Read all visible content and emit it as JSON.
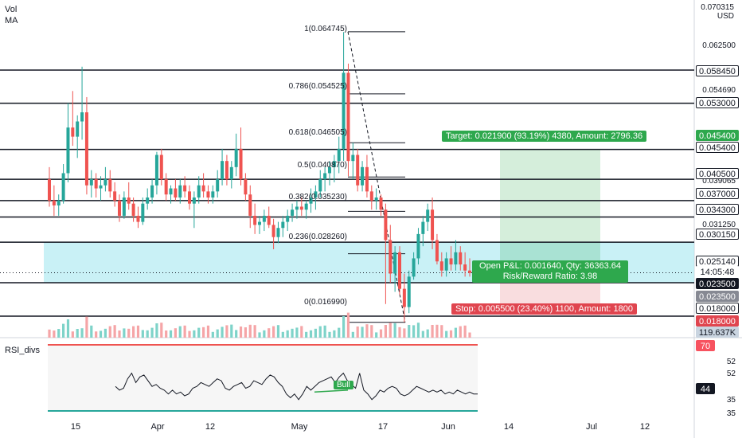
{
  "header": {
    "vol_label": "Vol",
    "ma_label": "MA"
  },
  "axis": {
    "currency_line1": "0.070315",
    "currency_line2": "USD",
    "plain_ticks": [
      "0.062500",
      "0.054690",
      "0.039065",
      "0.031250",
      "0.023500"
    ],
    "rsi_ticks": [
      "52",
      "52",
      "44",
      "35",
      "35"
    ]
  },
  "price_tags": [
    {
      "text": "0.058450",
      "bg": "#ffffff",
      "fg": "#131722",
      "border": "#131722"
    },
    {
      "text": "0.053000",
      "bg": "#ffffff",
      "fg": "#131722",
      "border": "#131722"
    },
    {
      "text": "0.045400",
      "bg": "#2ea84d",
      "fg": "#ffffff",
      "border": "#2ea84d"
    },
    {
      "text": "0.045400",
      "bg": "#ffffff",
      "fg": "#131722",
      "border": "#131722"
    },
    {
      "text": "0.040500",
      "bg": "#ffffff",
      "fg": "#131722",
      "border": "#131722"
    },
    {
      "text": "0.037000",
      "bg": "#ffffff",
      "fg": "#131722",
      "border": "#131722"
    },
    {
      "text": "0.034300",
      "bg": "#ffffff",
      "fg": "#131722",
      "border": "#131722"
    },
    {
      "text": "0.030150",
      "bg": "#ffffff",
      "fg": "#131722",
      "border": "#131722"
    },
    {
      "text": "0.025140",
      "bg": "#ffffff",
      "fg": "#131722",
      "border": "#131722"
    },
    {
      "text": "14:05:48",
      "bg": "#ffffff",
      "fg": "#131722",
      "border": "#ffffff"
    },
    {
      "text": "0.023500",
      "bg": "#131722",
      "fg": "#ffffff",
      "border": "#131722"
    },
    {
      "text": "0.023500",
      "bg": "#868993",
      "fg": "#ffffff",
      "border": "#868993"
    },
    {
      "text": "0.018000",
      "bg": "#ffffff",
      "fg": "#131722",
      "border": "#131722"
    },
    {
      "text": "0.018000",
      "bg": "#e0454f",
      "fg": "#ffffff",
      "border": "#e0454f"
    },
    {
      "text": "119.637K",
      "bg": "#c9d4e0",
      "fg": "#131722",
      "border": "#c9d4e0"
    },
    {
      "text": "70",
      "bg": "#f7525f",
      "fg": "#ffffff",
      "border": "#f7525f"
    },
    {
      "text": "44",
      "bg": "#131722",
      "fg": "#ffffff",
      "border": "#131722"
    }
  ],
  "fib_labels": [
    "1(0.064745)",
    "0.786(0.054525)",
    "0.618(0.046505)",
    "0.5(0.040870)",
    "0.382(0.035230)",
    "0.236(0.028260)",
    "0(0.016990)"
  ],
  "position": {
    "target_text": "Target: 0.021900 (93.19%) 4380, Amount: 2796.36",
    "open_pl_text": "Open P&L: 0.001640, Qty: 36363.64",
    "rr_text": "Risk/Reward Ratio: 3.98",
    "stop_text": "Stop: 0.005500 (23.40%) 1100, Amount: 1800"
  },
  "rsi": {
    "title": "RSI_divs",
    "bull_label": "Bull"
  },
  "chart_data": {
    "type": "candlestick",
    "x_ticks": [
      "15",
      "Apr",
      "12",
      "May",
      "17",
      "Jun",
      "14",
      "Jul",
      "12"
    ],
    "horizontal_levels": [
      0.05845,
      0.053,
      0.0454,
      0.0405,
      0.037,
      0.0343,
      0.03015,
      0.0235,
      0.018
    ],
    "support_zone": [
      0.0235,
      0.03015
    ],
    "fib_levels": [
      {
        "ratio": "1",
        "price": 0.064745
      },
      {
        "ratio": "0.786",
        "price": 0.054525
      },
      {
        "ratio": "0.618",
        "price": 0.046505
      },
      {
        "ratio": "0.5",
        "price": 0.04087
      },
      {
        "ratio": "0.382",
        "price": 0.03523
      },
      {
        "ratio": "0.236",
        "price": 0.02826
      },
      {
        "ratio": "0",
        "price": 0.01699
      }
    ],
    "long_position": {
      "entry": 0.0235,
      "target": 0.0454,
      "stop": 0.018
    },
    "last_price": 0.02514,
    "candles": [
      [
        0.0405,
        0.0425,
        0.036,
        0.037
      ],
      [
        0.037,
        0.0395,
        0.0345,
        0.0362
      ],
      [
        0.0362,
        0.038,
        0.0345,
        0.037
      ],
      [
        0.037,
        0.043,
        0.0365,
        0.0415
      ],
      [
        0.0415,
        0.053,
        0.04,
        0.049
      ],
      [
        0.049,
        0.055,
        0.046,
        0.0475
      ],
      [
        0.0475,
        0.051,
        0.044,
        0.05
      ],
      [
        0.05,
        0.059,
        0.047,
        0.0515
      ],
      [
        0.0515,
        0.054,
        0.038,
        0.0395
      ],
      [
        0.0395,
        0.042,
        0.0375,
        0.0405
      ],
      [
        0.0405,
        0.0415,
        0.0375,
        0.039
      ],
      [
        0.039,
        0.041,
        0.037,
        0.0395
      ],
      [
        0.0395,
        0.0425,
        0.0385,
        0.0405
      ],
      [
        0.0405,
        0.042,
        0.0375,
        0.0385
      ],
      [
        0.0385,
        0.04,
        0.036,
        0.037
      ],
      [
        0.037,
        0.038,
        0.0335,
        0.0345
      ],
      [
        0.0345,
        0.0385,
        0.034,
        0.0375
      ],
      [
        0.0375,
        0.04,
        0.0355,
        0.0365
      ],
      [
        0.0365,
        0.0375,
        0.0335,
        0.0345
      ],
      [
        0.0345,
        0.036,
        0.0325,
        0.0335
      ],
      [
        0.0335,
        0.0375,
        0.033,
        0.0365
      ],
      [
        0.0365,
        0.039,
        0.0355,
        0.0375
      ],
      [
        0.0375,
        0.0405,
        0.0365,
        0.0395
      ],
      [
        0.0395,
        0.045,
        0.038,
        0.0445
      ],
      [
        0.0445,
        0.0455,
        0.0395,
        0.0405
      ],
      [
        0.0405,
        0.0415,
        0.037,
        0.038
      ],
      [
        0.038,
        0.0395,
        0.0365,
        0.039
      ],
      [
        0.039,
        0.0405,
        0.037,
        0.0375
      ],
      [
        0.0375,
        0.0405,
        0.0365,
        0.0395
      ],
      [
        0.0395,
        0.041,
        0.0375,
        0.0385
      ],
      [
        0.0385,
        0.0395,
        0.0355,
        0.0365
      ],
      [
        0.0365,
        0.0385,
        0.0325,
        0.0375
      ],
      [
        0.0375,
        0.041,
        0.0365,
        0.0395
      ],
      [
        0.0395,
        0.0415,
        0.0375,
        0.0385
      ],
      [
        0.0385,
        0.0395,
        0.0365,
        0.0375
      ],
      [
        0.0375,
        0.0395,
        0.0365,
        0.0385
      ],
      [
        0.0385,
        0.042,
        0.0375,
        0.0405
      ],
      [
        0.0405,
        0.0455,
        0.0395,
        0.0435
      ],
      [
        0.0435,
        0.0445,
        0.0395,
        0.0405
      ],
      [
        0.0405,
        0.0435,
        0.039,
        0.0425
      ],
      [
        0.0425,
        0.048,
        0.041,
        0.0455
      ],
      [
        0.0455,
        0.049,
        0.0395,
        0.0405
      ],
      [
        0.0405,
        0.0415,
        0.037,
        0.038
      ],
      [
        0.038,
        0.0395,
        0.0325,
        0.0345
      ],
      [
        0.0345,
        0.0365,
        0.0315,
        0.033
      ],
      [
        0.033,
        0.0345,
        0.0315,
        0.0335
      ],
      [
        0.0335,
        0.0355,
        0.032,
        0.0345
      ],
      [
        0.0345,
        0.036,
        0.0325,
        0.033
      ],
      [
        0.033,
        0.034,
        0.029,
        0.031
      ],
      [
        0.031,
        0.0335,
        0.03,
        0.0325
      ],
      [
        0.0325,
        0.0345,
        0.031,
        0.0335
      ],
      [
        0.0335,
        0.0355,
        0.032,
        0.0345
      ],
      [
        0.0345,
        0.0365,
        0.0335,
        0.0355
      ],
      [
        0.0355,
        0.037,
        0.034,
        0.036
      ],
      [
        0.036,
        0.0375,
        0.0345,
        0.0355
      ],
      [
        0.0355,
        0.037,
        0.034,
        0.0365
      ],
      [
        0.0365,
        0.039,
        0.035,
        0.0375
      ],
      [
        0.0375,
        0.0395,
        0.0355,
        0.0385
      ],
      [
        0.0385,
        0.042,
        0.0375,
        0.0405
      ],
      [
        0.0405,
        0.0425,
        0.0385,
        0.0415
      ],
      [
        0.0415,
        0.0435,
        0.0395,
        0.0425
      ],
      [
        0.0425,
        0.0445,
        0.04,
        0.0435
      ],
      [
        0.0435,
        0.0475,
        0.0415,
        0.0455
      ],
      [
        0.0455,
        0.0647,
        0.0435,
        0.058
      ],
      [
        0.058,
        0.0595,
        0.041,
        0.0435
      ],
      [
        0.0435,
        0.0465,
        0.0405,
        0.0445
      ],
      [
        0.0445,
        0.0455,
        0.0385,
        0.0395
      ],
      [
        0.0395,
        0.0435,
        0.0385,
        0.0425
      ],
      [
        0.0425,
        0.0445,
        0.0375,
        0.0385
      ],
      [
        0.0385,
        0.0395,
        0.0355,
        0.037
      ],
      [
        0.037,
        0.039,
        0.0355,
        0.0375
      ],
      [
        0.0375,
        0.038,
        0.0345,
        0.0355
      ],
      [
        0.0355,
        0.0365,
        0.02,
        0.0305
      ],
      [
        0.0305,
        0.033,
        0.0235,
        0.025
      ],
      [
        0.025,
        0.0295,
        0.022,
        0.0285
      ],
      [
        0.0285,
        0.0295,
        0.0215,
        0.0225
      ],
      [
        0.0225,
        0.025,
        0.017,
        0.0195
      ],
      [
        0.0195,
        0.0255,
        0.0185,
        0.0245
      ],
      [
        0.0245,
        0.0285,
        0.024,
        0.0275
      ],
      [
        0.0275,
        0.0325,
        0.0265,
        0.0315
      ],
      [
        0.0315,
        0.0345,
        0.0295,
        0.0335
      ],
      [
        0.0335,
        0.0365,
        0.032,
        0.0355
      ],
      [
        0.0355,
        0.0375,
        0.029,
        0.0305
      ],
      [
        0.0305,
        0.0315,
        0.0265,
        0.027
      ],
      [
        0.027,
        0.0285,
        0.0245,
        0.0255
      ],
      [
        0.0255,
        0.0285,
        0.0245,
        0.0275
      ],
      [
        0.0275,
        0.0295,
        0.0255,
        0.0265
      ],
      [
        0.0265,
        0.0305,
        0.0255,
        0.0285
      ],
      [
        0.0285,
        0.0295,
        0.0255,
        0.0265
      ],
      [
        0.0265,
        0.0285,
        0.0245,
        0.0255
      ],
      [
        0.0255,
        0.0275,
        0.0245,
        0.0251
      ]
    ],
    "rsi_values": [
      48,
      46,
      47,
      52,
      55,
      50,
      53,
      54,
      51,
      48,
      49,
      47,
      46,
      44,
      46,
      44,
      45,
      43,
      44,
      47,
      48,
      50,
      49,
      48,
      50,
      52,
      51,
      47,
      46,
      48,
      49,
      50,
      47,
      48,
      51,
      50,
      49,
      52,
      54,
      53,
      50,
      48,
      44,
      42,
      44,
      41,
      44,
      48,
      46,
      48,
      50,
      51,
      52,
      53,
      50,
      53,
      55,
      51,
      49,
      47,
      55,
      46,
      44,
      41,
      43,
      46,
      45,
      47,
      48,
      47,
      44,
      43,
      44,
      46,
      48,
      47,
      46,
      45,
      46,
      45,
      46,
      44,
      45,
      44,
      46,
      45,
      44,
      45,
      44,
      44
    ],
    "rsi_ylim": [
      35,
      70
    ],
    "rsi_levels": [
      70,
      52,
      44,
      35
    ]
  }
}
